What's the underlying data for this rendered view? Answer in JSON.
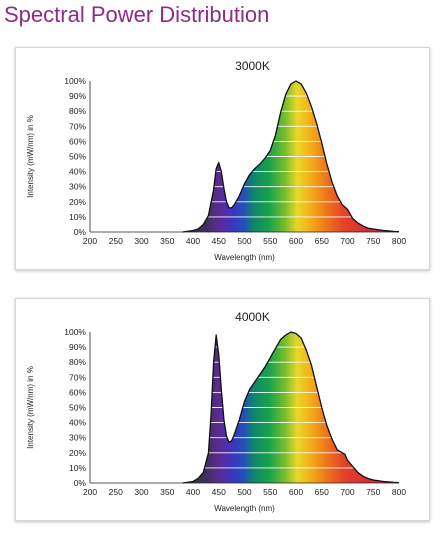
{
  "page": {
    "title": "Spectral Power Distribution",
    "title_color": "#8e2a8a"
  },
  "chart_data": [
    {
      "type": "area",
      "title": "3000K",
      "xlabel": "Wavelength (nm)",
      "ylabel": "Intensity (mW/nm) in %",
      "xlim": [
        200,
        800
      ],
      "ylim": [
        0,
        100
      ],
      "x_ticks": [
        "200",
        "250",
        "300",
        "350",
        "400",
        "450",
        "500",
        "550",
        "600",
        "650",
        "700",
        "750",
        "800"
      ],
      "y_ticks": [
        "0%",
        "10%",
        "20%",
        "30%",
        "40%",
        "50%",
        "60%",
        "70%",
        "80%",
        "90%",
        "100%"
      ],
      "grid": true,
      "x": [
        380,
        390,
        400,
        410,
        420,
        430,
        440,
        445,
        450,
        455,
        460,
        465,
        470,
        475,
        480,
        490,
        500,
        510,
        520,
        530,
        540,
        550,
        560,
        570,
        580,
        590,
        600,
        610,
        620,
        630,
        640,
        650,
        660,
        670,
        680,
        690,
        700,
        710,
        720,
        730,
        740,
        750,
        760,
        770,
        780,
        790,
        800
      ],
      "values": [
        0,
        0.5,
        1,
        2,
        5,
        11,
        28,
        42,
        46,
        40,
        29,
        20,
        16,
        16,
        18,
        24,
        32,
        38,
        42,
        45,
        49,
        54,
        64,
        79,
        91,
        98,
        100,
        98,
        92,
        83,
        72,
        59,
        45,
        33,
        24,
        18,
        15,
        9,
        6,
        4,
        2.5,
        2,
        1.5,
        1,
        0.7,
        0.4,
        0.2
      ]
    },
    {
      "type": "area",
      "title": "4000K",
      "xlabel": "Wavelength (nm)",
      "ylabel": "Intensity (mW/nm) in %",
      "xlim": [
        200,
        800
      ],
      "ylim": [
        0,
        100
      ],
      "x_ticks": [
        "200",
        "250",
        "300",
        "350",
        "400",
        "450",
        "500",
        "550",
        "600",
        "650",
        "700",
        "750",
        "800"
      ],
      "y_ticks": [
        "0%",
        "10%",
        "20%",
        "30%",
        "40%",
        "50%",
        "60%",
        "70%",
        "80%",
        "90%",
        "100%"
      ],
      "grid": true,
      "x": [
        380,
        390,
        400,
        410,
        420,
        430,
        435,
        440,
        445,
        450,
        455,
        460,
        465,
        470,
        475,
        480,
        490,
        500,
        510,
        520,
        530,
        540,
        550,
        560,
        570,
        580,
        590,
        600,
        610,
        620,
        630,
        640,
        650,
        660,
        670,
        680,
        690,
        695,
        700,
        710,
        720,
        730,
        740,
        750,
        760,
        770,
        780,
        790,
        800
      ],
      "values": [
        0,
        0.5,
        1,
        3,
        7,
        20,
        45,
        80,
        98,
        85,
        62,
        42,
        31,
        27,
        28,
        32,
        42,
        54,
        62,
        67,
        72,
        77,
        83,
        89,
        95,
        98,
        100,
        99,
        96,
        88,
        78,
        64,
        50,
        38,
        29,
        22,
        20,
        19,
        15,
        11,
        7,
        4.5,
        3,
        2,
        1.5,
        1,
        0.7,
        0.4,
        0.2
      ]
    }
  ]
}
